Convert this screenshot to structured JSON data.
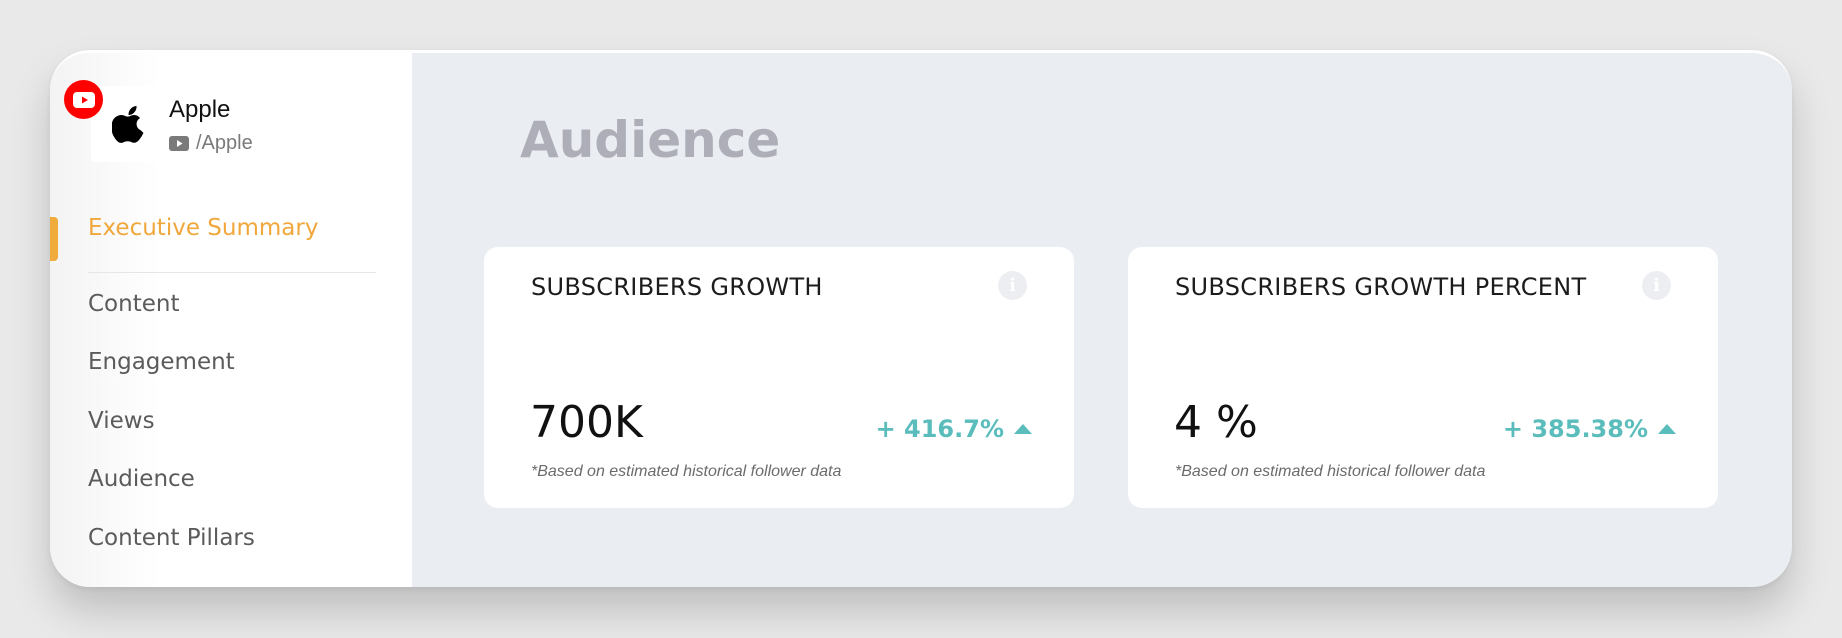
{
  "profile": {
    "name": "Apple",
    "handle": "/Apple",
    "logo_icon": "apple-logo-icon",
    "platform_icon": "youtube-icon",
    "platform_color": "#ff0000"
  },
  "nav": {
    "items": [
      {
        "label": "Executive Summary",
        "active": true
      },
      {
        "label": "Content",
        "active": false
      },
      {
        "label": "Engagement",
        "active": false
      },
      {
        "label": "Views",
        "active": false
      },
      {
        "label": "Audience",
        "active": false
      },
      {
        "label": "Content Pillars",
        "active": false
      }
    ],
    "active_color": "#f0a73c"
  },
  "page": {
    "title": "Audience"
  },
  "cards": [
    {
      "title": "SUBSCRIBERS GROWTH",
      "value": "700K",
      "change": "+ 416.7%",
      "trend": "up",
      "note": "*Based on estimated historical follower data",
      "info_icon": "info-icon"
    },
    {
      "title": "SUBSCRIBERS GROWTH PERCENT",
      "value": "4 %",
      "change": "+ 385.38%",
      "trend": "up",
      "note": "*Based on estimated historical follower data",
      "info_icon": "info-icon"
    }
  ],
  "colors": {
    "accent": "#f0a73c",
    "positive": "#5bbcbc",
    "background": "#eaedf1"
  }
}
